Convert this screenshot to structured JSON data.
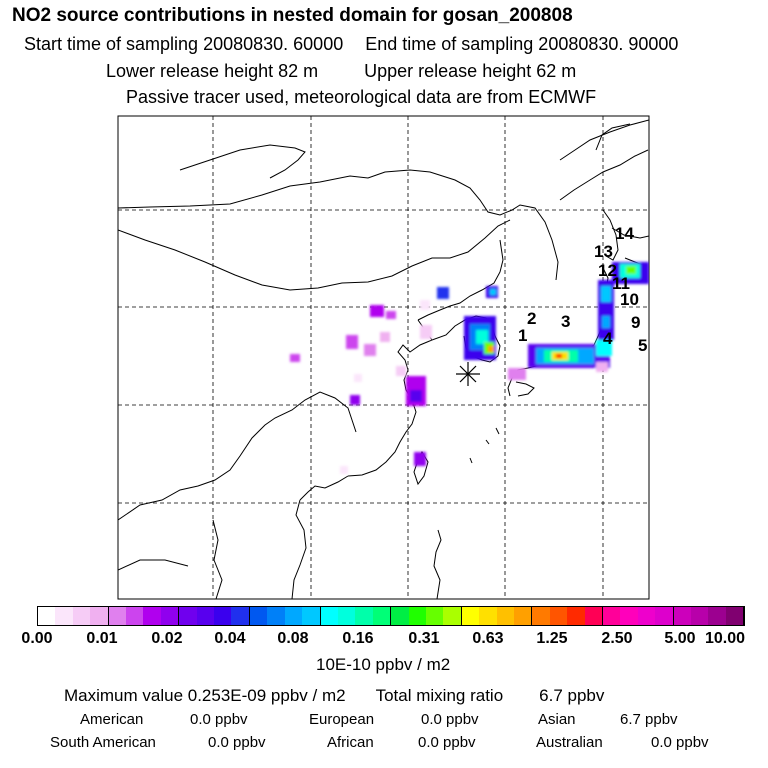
{
  "header": {
    "title": "NO2 source contributions in nested domain for gosan_200808",
    "start_label": "Start time of sampling 20080830. 60000",
    "end_label": "End time of sampling 20080830. 90000",
    "lower_label": "Lower release height   82 m",
    "upper_label": "Upper release height   62 m",
    "info": "Passive tracer used, meteorological data are from ECMWF"
  },
  "map": {
    "receptor_symbol": "asterisk-marker",
    "numbers": [
      "1",
      "2",
      "3",
      "4",
      "5",
      "9",
      "10",
      "11",
      "12",
      "13",
      "14"
    ]
  },
  "colorbar": {
    "ticks": [
      "0.00",
      "0.01",
      "0.02",
      "0.04",
      "0.08",
      "0.16",
      "0.31",
      "0.63",
      "1.25",
      "2.50",
      "5.00",
      "10.00"
    ],
    "colors": [
      "#ffffff",
      "#fbe6fb",
      "#f6ccf6",
      "#f0b0f0",
      "#e080ee",
      "#cc44ee",
      "#b000ee",
      "#9000ee",
      "#7000ee",
      "#5800ee",
      "#3a00ee",
      "#2030ee",
      "#0058f0",
      "#0080f8",
      "#00a8ff",
      "#00c8ff",
      "#00ffff",
      "#00ffdd",
      "#00ffaa",
      "#00ff77",
      "#00ee44",
      "#20ff00",
      "#66ff00",
      "#aaff00",
      "#ffff00",
      "#ffe000",
      "#ffc000",
      "#ffa000",
      "#ff7a00",
      "#ff5500",
      "#ff2a00",
      "#ff0055",
      "#ff0099",
      "#ff00bb",
      "#ee00cc",
      "#dd00cc",
      "#cc00bb",
      "#b800aa",
      "#9c0090",
      "#800070"
    ],
    "unit": "10E-10 ppbv / m2"
  },
  "stats": {
    "max_value": "Maximum value  0.253E-09 ppbv / m2",
    "total": "Total mixing ratio",
    "total_value": "6.7 ppbv",
    "regions": [
      {
        "name": "American",
        "value": "0.0 ppbv"
      },
      {
        "name": "European",
        "value": "0.0 ppbv"
      },
      {
        "name": "Asian",
        "value": "6.7 ppbv"
      },
      {
        "name": "South American",
        "value": "0.0 ppbv"
      },
      {
        "name": "African",
        "value": "0.0 ppbv"
      },
      {
        "name": "Australian",
        "value": "0.0 ppbv"
      }
    ]
  }
}
